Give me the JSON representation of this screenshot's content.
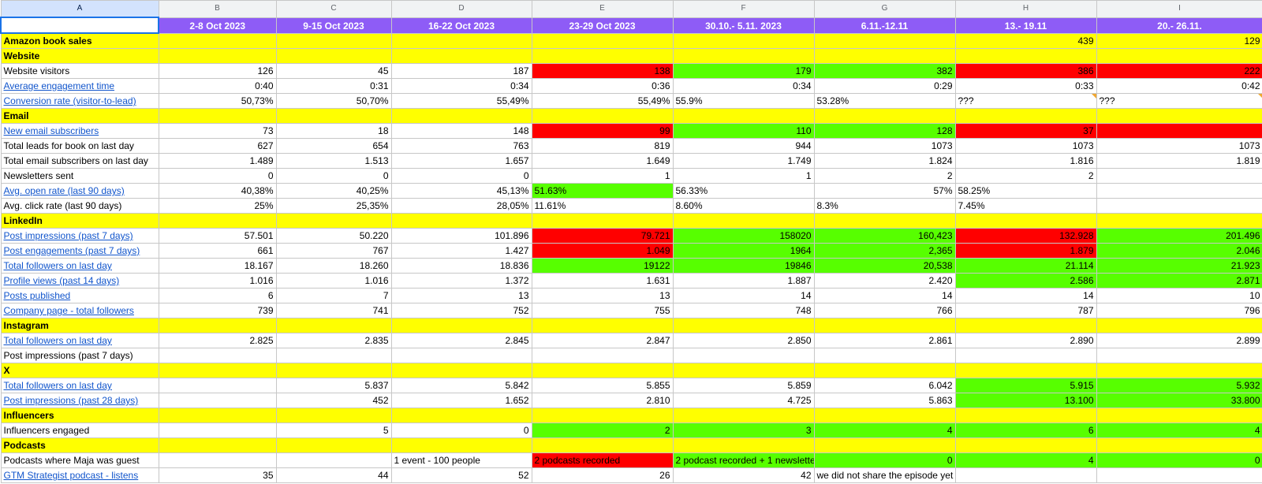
{
  "col_letters": [
    "A",
    "B",
    "C",
    "D",
    "E",
    "F",
    "G",
    "H",
    "I"
  ],
  "weeks": [
    "2-8 Oct 2023",
    "9-15 Oct 2023",
    "16-22 Oct 2023",
    "23-29 Oct 2023",
    "30.10.- 5.11. 2023",
    "6.11.-12.11",
    "13.- 19.11",
    "20.- 26.11."
  ],
  "colors": {
    "yellow": "#ffff00",
    "green": "#57ff00",
    "red": "#ff0000",
    "header_purple": "#8e5cf6",
    "link": "#1155cc"
  },
  "rows": [
    {
      "label": "Amazon book sales",
      "type": "section",
      "cells": [
        "",
        "",
        "",
        "",
        "",
        "",
        "439",
        "129"
      ]
    },
    {
      "label": "Website",
      "type": "section",
      "cells": [
        "",
        "",
        "",
        "",
        "",
        "",
        "",
        ""
      ]
    },
    {
      "label": "Website visitors",
      "cells": [
        "126",
        "45",
        "187",
        "138",
        "179",
        "382",
        "386",
        "222"
      ],
      "fills": [
        "",
        "",
        "",
        "rd",
        "g",
        "g",
        "rd",
        "rd"
      ]
    },
    {
      "label": "Average engagement time",
      "link": true,
      "cells": [
        "0:40",
        "0:31",
        "0:34",
        "0:36",
        "0:34",
        "0:29",
        "0:33",
        "0:42"
      ]
    },
    {
      "label": "Conversion rate (visitor-to-lead)",
      "link": true,
      "cells": [
        "50,73%",
        "50,70%",
        "55,49%",
        "55,49%",
        "55.9%",
        "53.28%",
        "???",
        "???"
      ],
      "align": [
        "r",
        "r",
        "r",
        "r",
        "l",
        "l",
        "l",
        "l"
      ],
      "overflow": [
        false,
        false,
        false,
        false,
        true,
        true,
        false,
        false
      ],
      "tri": [
        false,
        false,
        false,
        false,
        false,
        false,
        true,
        true
      ]
    },
    {
      "label": "Email",
      "type": "section",
      "cells": [
        "",
        "",
        "",
        "",
        "",
        "",
        "",
        ""
      ]
    },
    {
      "label": "New email subscribers",
      "link": true,
      "cells": [
        "73",
        "18",
        "148",
        "99",
        "110",
        "128",
        "37",
        ""
      ],
      "fills": [
        "",
        "",
        "",
        "rd",
        "g",
        "g",
        "rd",
        "rd"
      ]
    },
    {
      "label": "Total leads for book on last day",
      "cells": [
        "627",
        "654",
        "763",
        "819",
        "944",
        "1073",
        "1073",
        "1073"
      ]
    },
    {
      "label": "Total email subscribers on last day",
      "cells": [
        "1.489",
        "1.513",
        "1.657",
        "1.649",
        "1.749",
        "1.824",
        "1.816",
        "1.819"
      ]
    },
    {
      "label": "Newsletters sent",
      "cells": [
        "0",
        "0",
        "0",
        "1",
        "1",
        "2",
        "2",
        ""
      ]
    },
    {
      "label": "Avg. open rate (last 90 days)",
      "link": true,
      "cells": [
        "40,38%",
        "40,25%",
        "45,13%",
        "51.63%",
        "56.33%",
        "57%",
        "58.25%",
        ""
      ],
      "fills": [
        "",
        "",
        "",
        "g",
        "",
        "",
        "",
        ""
      ],
      "align": [
        "r",
        "r",
        "r",
        "l",
        "l",
        "r",
        "l",
        "r"
      ]
    },
    {
      "label": "Avg. click rate (last 90 days)",
      "cells": [
        "25%",
        "25,35%",
        "28,05%",
        "11.61%",
        "8.60%",
        "8.3%",
        "7.45%",
        ""
      ],
      "align": [
        "r",
        "r",
        "r",
        "l",
        "l",
        "l",
        "l",
        "r"
      ]
    },
    {
      "label": "LinkedIn",
      "type": "section",
      "cells": [
        "",
        "",
        "",
        "",
        "",
        "",
        "",
        ""
      ]
    },
    {
      "label": "Post impressions (past 7 days)",
      "link": true,
      "cells": [
        "57.501",
        "50.220",
        "101.896",
        "79.721",
        "158020",
        "160,423",
        "132.928",
        "201.496"
      ],
      "fills": [
        "",
        "",
        "",
        "rd",
        "g",
        "g",
        "rd",
        "g"
      ]
    },
    {
      "label": "Post engagements (past 7 days)",
      "link": true,
      "cells": [
        "661",
        "767",
        "1.427",
        "1.049",
        "1964",
        "2,365",
        "1.879",
        "2.046"
      ],
      "fills": [
        "",
        "",
        "",
        "rd",
        "g",
        "g",
        "rd",
        "g"
      ]
    },
    {
      "label": "Total followers on last day",
      "link": true,
      "cells": [
        "18.167",
        "18.260",
        "18.836",
        "19122",
        "19846",
        "20,538",
        "21.114",
        "21.923"
      ],
      "fills": [
        "",
        "",
        "",
        "g",
        "g",
        "g",
        "g",
        "g"
      ]
    },
    {
      "label": "Profile views (past 14 days)",
      "link": true,
      "cells": [
        "1.016",
        "1.016",
        "1.372",
        "1.631",
        "1.887",
        "2.420",
        "2.586",
        "2.871"
      ],
      "fills": [
        "",
        "",
        "",
        "",
        "",
        "",
        "g",
        "g"
      ]
    },
    {
      "label": "Posts published",
      "link": true,
      "cells": [
        "6",
        "7",
        "13",
        "13",
        "14",
        "14",
        "14",
        "10"
      ]
    },
    {
      "label": "Company page - total followers",
      "link": true,
      "cells": [
        "739",
        "741",
        "752",
        "755",
        "748",
        "766",
        "787",
        "796"
      ]
    },
    {
      "label": "Instagram",
      "type": "section",
      "cells": [
        "",
        "",
        "",
        "",
        "",
        "",
        "",
        ""
      ]
    },
    {
      "label": "Total followers on last day",
      "link": true,
      "cells": [
        "2.825",
        "2.835",
        "2.845",
        "2.847",
        "2.850",
        "2.861",
        "2.890",
        "2.899"
      ]
    },
    {
      "label": "Post impressions (past 7 days)",
      "cells": [
        "",
        "",
        "",
        "",
        "",
        "",
        "",
        ""
      ]
    },
    {
      "label": "X",
      "type": "section",
      "cells": [
        "",
        "",
        "",
        "",
        "",
        "",
        "",
        ""
      ]
    },
    {
      "label": "Total followers on last day",
      "link": true,
      "cells": [
        "",
        "5.837",
        "5.842",
        "5.855",
        "5.859",
        "6.042",
        "5.915",
        "5.932"
      ],
      "fills": [
        "",
        "",
        "",
        "",
        "",
        "",
        "g",
        "g"
      ]
    },
    {
      "label": "Post impressions (past 28 days)",
      "link": true,
      "cells": [
        "",
        "452",
        "1.652",
        "2.810",
        "4.725",
        "5.863",
        "13.100",
        "33.800"
      ],
      "fills": [
        "",
        "",
        "",
        "",
        "",
        "",
        "g",
        "g"
      ]
    },
    {
      "label": "Influencers",
      "type": "section",
      "cells": [
        "",
        "",
        "",
        "",
        "",
        "",
        "",
        ""
      ]
    },
    {
      "label": "Influencers engaged",
      "cells": [
        "",
        "5",
        "0",
        "2",
        "3",
        "4",
        "6",
        "4"
      ],
      "fills": [
        "",
        "",
        "",
        "g",
        "g",
        "g",
        "g",
        "g"
      ]
    },
    {
      "label": "Podcasts",
      "type": "section",
      "cells": [
        "",
        "",
        "",
        "",
        "",
        "",
        "",
        ""
      ]
    },
    {
      "label": "Podcasts where Maja was guest",
      "cells": [
        "",
        "",
        "1 event - 100 people",
        "2 podcasts recorded",
        "2 podcast recorded + 1 newslette",
        "0",
        "4",
        "0"
      ],
      "fills": [
        "",
        "",
        "",
        "rd",
        "g",
        "g",
        "g",
        "g"
      ],
      "align": [
        "r",
        "r",
        "l",
        "l",
        "l",
        "r",
        "r",
        "r"
      ]
    },
    {
      "label": "GTM Strategist podcast - listens",
      "link": true,
      "cells": [
        "35",
        "44",
        "52",
        "26",
        "42",
        "we did not share the episode yet",
        "",
        ""
      ],
      "align": [
        "r",
        "r",
        "r",
        "r",
        "r",
        "l",
        "r",
        "r"
      ],
      "overflow": [
        false,
        false,
        false,
        false,
        false,
        true,
        false,
        false
      ]
    }
  ]
}
